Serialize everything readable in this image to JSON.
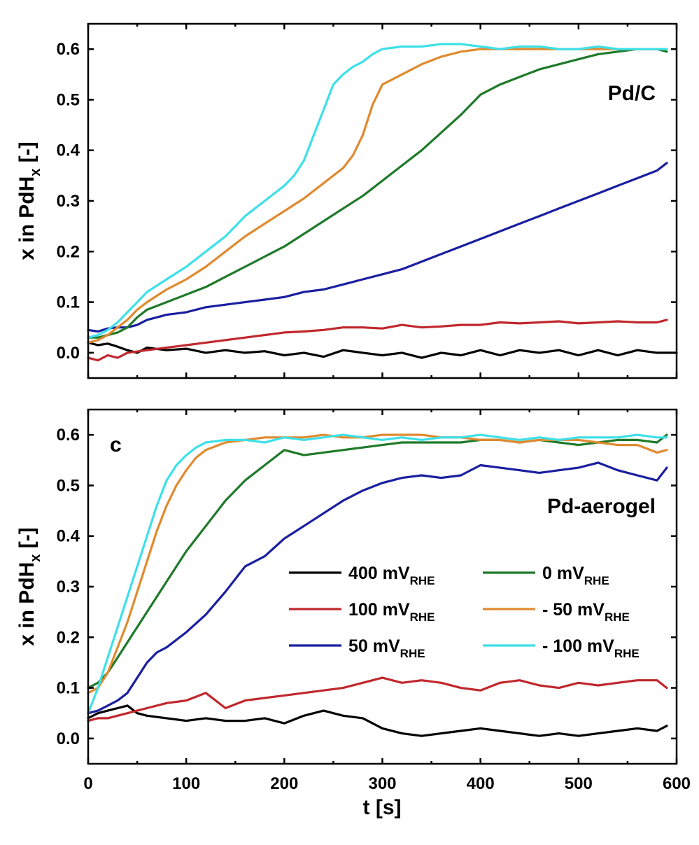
{
  "chart_data": [
    {
      "type": "line",
      "panel_label": "Pd/C",
      "xlabel": "",
      "ylabel": "x in PdH",
      "ylabel_subscript": "x",
      "ylabel_suffix": " [-]",
      "xlim": [
        0,
        600
      ],
      "ylim": [
        -0.05,
        0.65
      ],
      "yticks": [
        "0.0",
        "0.1",
        "0.2",
        "0.3",
        "0.4",
        "0.5",
        "0.6"
      ],
      "xticks": [],
      "series": [
        {
          "name": "400 mV_RHE",
          "color": "#000000",
          "x": [
            0,
            10,
            20,
            30,
            40,
            50,
            60,
            80,
            100,
            120,
            140,
            160,
            180,
            200,
            220,
            240,
            260,
            280,
            300,
            320,
            340,
            360,
            380,
            400,
            420,
            440,
            460,
            480,
            500,
            520,
            540,
            560,
            580,
            600
          ],
          "y": [
            0.02,
            0.015,
            0.018,
            0.012,
            0.005,
            0.0,
            0.01,
            0.005,
            0.008,
            0.0,
            0.005,
            0.0,
            0.003,
            -0.005,
            0.0,
            -0.008,
            0.005,
            0.0,
            -0.005,
            0.0,
            -0.01,
            0.0,
            -0.005,
            0.005,
            -0.005,
            0.005,
            0.0,
            0.005,
            -0.005,
            0.005,
            -0.005,
            0.005,
            0.0,
            0.0
          ]
        },
        {
          "name": "100 mV_RHE",
          "color": "#c0282d",
          "x": [
            0,
            10,
            20,
            30,
            40,
            60,
            80,
            100,
            120,
            140,
            160,
            180,
            200,
            220,
            240,
            260,
            280,
            300,
            320,
            340,
            360,
            380,
            400,
            420,
            440,
            460,
            480,
            500,
            520,
            540,
            560,
            580,
            590
          ],
          "y": [
            -0.01,
            -0.015,
            -0.005,
            -0.01,
            0.0,
            0.005,
            0.01,
            0.015,
            0.02,
            0.025,
            0.03,
            0.035,
            0.04,
            0.042,
            0.045,
            0.05,
            0.05,
            0.048,
            0.055,
            0.05,
            0.052,
            0.055,
            0.055,
            0.06,
            0.058,
            0.06,
            0.062,
            0.058,
            0.06,
            0.062,
            0.06,
            0.06,
            0.065
          ]
        },
        {
          "name": "50 mV_RHE",
          "color": "#1a1fa0",
          "x": [
            0,
            10,
            20,
            30,
            40,
            50,
            60,
            70,
            80,
            100,
            120,
            140,
            160,
            180,
            200,
            220,
            240,
            260,
            280,
            300,
            320,
            340,
            360,
            380,
            400,
            420,
            440,
            460,
            480,
            500,
            520,
            540,
            560,
            580,
            590
          ],
          "y": [
            0.045,
            0.042,
            0.048,
            0.05,
            0.05,
            0.055,
            0.065,
            0.07,
            0.075,
            0.08,
            0.09,
            0.095,
            0.1,
            0.105,
            0.11,
            0.12,
            0.125,
            0.135,
            0.145,
            0.155,
            0.165,
            0.18,
            0.195,
            0.21,
            0.225,
            0.24,
            0.255,
            0.27,
            0.285,
            0.3,
            0.315,
            0.33,
            0.345,
            0.36,
            0.375
          ]
        },
        {
          "name": "0 mV_RHE",
          "color": "#1f7a2a",
          "x": [
            0,
            10,
            20,
            30,
            40,
            50,
            60,
            80,
            100,
            120,
            140,
            160,
            180,
            200,
            220,
            240,
            260,
            280,
            300,
            320,
            340,
            360,
            380,
            400,
            420,
            440,
            460,
            480,
            500,
            520,
            540,
            560,
            580,
            590
          ],
          "y": [
            0.03,
            0.03,
            0.035,
            0.04,
            0.05,
            0.07,
            0.085,
            0.1,
            0.115,
            0.13,
            0.15,
            0.17,
            0.19,
            0.21,
            0.235,
            0.26,
            0.285,
            0.31,
            0.34,
            0.37,
            0.4,
            0.435,
            0.47,
            0.51,
            0.53,
            0.545,
            0.56,
            0.57,
            0.58,
            0.59,
            0.595,
            0.6,
            0.6,
            0.595
          ]
        },
        {
          "name": "- 50 mV_RHE",
          "color": "#e08a30",
          "x": [
            0,
            10,
            20,
            30,
            40,
            50,
            60,
            80,
            100,
            120,
            140,
            160,
            180,
            200,
            220,
            240,
            260,
            270,
            280,
            290,
            300,
            320,
            340,
            360,
            380,
            400,
            420,
            440,
            460,
            480,
            500,
            520,
            540,
            560,
            580,
            590
          ],
          "y": [
            0.02,
            0.025,
            0.035,
            0.05,
            0.065,
            0.085,
            0.1,
            0.125,
            0.145,
            0.17,
            0.2,
            0.23,
            0.255,
            0.28,
            0.305,
            0.335,
            0.365,
            0.39,
            0.43,
            0.49,
            0.53,
            0.55,
            0.57,
            0.585,
            0.595,
            0.6,
            0.6,
            0.6,
            0.6,
            0.6,
            0.6,
            0.6,
            0.6,
            0.6,
            0.6,
            0.6
          ]
        },
        {
          "name": "- 100 mV_RHE",
          "color": "#3ee0e8",
          "x": [
            0,
            10,
            20,
            30,
            40,
            50,
            60,
            80,
            100,
            120,
            140,
            160,
            180,
            200,
            210,
            220,
            230,
            240,
            250,
            260,
            270,
            280,
            290,
            300,
            320,
            340,
            360,
            380,
            400,
            420,
            440,
            460,
            480,
            500,
            520,
            540,
            560,
            580,
            590
          ],
          "y": [
            0.03,
            0.035,
            0.045,
            0.06,
            0.08,
            0.1,
            0.12,
            0.145,
            0.17,
            0.2,
            0.23,
            0.27,
            0.3,
            0.33,
            0.35,
            0.38,
            0.43,
            0.48,
            0.53,
            0.55,
            0.565,
            0.575,
            0.59,
            0.6,
            0.605,
            0.605,
            0.61,
            0.61,
            0.605,
            0.6,
            0.605,
            0.605,
            0.6,
            0.6,
            0.605,
            0.6,
            0.6,
            0.6,
            0.6
          ]
        }
      ]
    },
    {
      "type": "line",
      "panel_label": "Pd-aerogel",
      "corner_label": "c",
      "xlabel": "t [s]",
      "ylabel": "x in PdH",
      "ylabel_subscript": "x",
      "ylabel_suffix": " [-]",
      "xlim": [
        0,
        600
      ],
      "ylim": [
        -0.05,
        0.65
      ],
      "yticks": [
        "0.0",
        "0.1",
        "0.2",
        "0.3",
        "0.4",
        "0.5",
        "0.6"
      ],
      "xticks": [
        "0",
        "100",
        "200",
        "300",
        "400",
        "500",
        "600"
      ],
      "legend": {
        "placement": "lower-right",
        "main_unit": "mV",
        "subscript": "RHE",
        "columns": [
          [
            {
              "value": "400",
              "color": "#000000"
            },
            {
              "value": "100",
              "color": "#c0282d"
            },
            {
              "value": "50",
              "color": "#1a1fa0"
            }
          ],
          [
            {
              "value": "0",
              "color": "#1f7a2a"
            },
            {
              "value": "- 50",
              "color": "#e08a30"
            },
            {
              "value": "- 100",
              "color": "#3ee0e8"
            }
          ]
        ]
      },
      "series": [
        {
          "name": "400 mV_RHE",
          "color": "#000000",
          "x": [
            0,
            10,
            20,
            30,
            40,
            50,
            60,
            80,
            100,
            120,
            140,
            160,
            180,
            200,
            220,
            240,
            260,
            280,
            300,
            320,
            340,
            360,
            380,
            400,
            420,
            440,
            460,
            480,
            500,
            520,
            540,
            560,
            580,
            590
          ],
          "y": [
            0.04,
            0.05,
            0.055,
            0.06,
            0.065,
            0.05,
            0.045,
            0.04,
            0.035,
            0.04,
            0.035,
            0.035,
            0.04,
            0.03,
            0.045,
            0.055,
            0.045,
            0.04,
            0.02,
            0.01,
            0.005,
            0.01,
            0.015,
            0.02,
            0.015,
            0.01,
            0.005,
            0.01,
            0.005,
            0.01,
            0.015,
            0.02,
            0.015,
            0.025
          ]
        },
        {
          "name": "100 mV_RHE",
          "color": "#c0282d",
          "x": [
            0,
            10,
            20,
            30,
            40,
            50,
            60,
            80,
            100,
            120,
            140,
            160,
            180,
            200,
            220,
            240,
            260,
            280,
            300,
            320,
            340,
            360,
            380,
            400,
            420,
            440,
            460,
            480,
            500,
            520,
            540,
            560,
            580,
            590
          ],
          "y": [
            0.035,
            0.04,
            0.04,
            0.045,
            0.05,
            0.055,
            0.06,
            0.07,
            0.075,
            0.09,
            0.06,
            0.075,
            0.08,
            0.085,
            0.09,
            0.095,
            0.1,
            0.11,
            0.12,
            0.11,
            0.115,
            0.11,
            0.1,
            0.095,
            0.11,
            0.115,
            0.105,
            0.1,
            0.11,
            0.105,
            0.11,
            0.115,
            0.115,
            0.1
          ]
        },
        {
          "name": "50 mV_RHE",
          "color": "#1a1fa0",
          "x": [
            0,
            10,
            20,
            30,
            40,
            50,
            60,
            70,
            80,
            100,
            120,
            140,
            160,
            180,
            200,
            220,
            240,
            260,
            280,
            300,
            320,
            340,
            360,
            380,
            400,
            420,
            440,
            460,
            480,
            500,
            520,
            540,
            560,
            580,
            590
          ],
          "y": [
            0.05,
            0.055,
            0.065,
            0.075,
            0.09,
            0.12,
            0.15,
            0.17,
            0.18,
            0.21,
            0.245,
            0.29,
            0.34,
            0.36,
            0.395,
            0.42,
            0.445,
            0.47,
            0.49,
            0.505,
            0.515,
            0.52,
            0.515,
            0.52,
            0.54,
            0.535,
            0.53,
            0.525,
            0.53,
            0.535,
            0.545,
            0.53,
            0.52,
            0.51,
            0.535
          ]
        },
        {
          "name": "0 mV_RHE",
          "color": "#1f7a2a",
          "x": [
            0,
            10,
            20,
            30,
            40,
            50,
            60,
            80,
            100,
            120,
            140,
            160,
            180,
            200,
            220,
            240,
            260,
            280,
            300,
            320,
            340,
            360,
            380,
            400,
            420,
            440,
            460,
            480,
            500,
            520,
            540,
            560,
            580,
            590
          ],
          "y": [
            0.1,
            0.11,
            0.13,
            0.16,
            0.19,
            0.22,
            0.25,
            0.31,
            0.37,
            0.42,
            0.47,
            0.51,
            0.54,
            0.57,
            0.56,
            0.565,
            0.57,
            0.575,
            0.58,
            0.585,
            0.585,
            0.585,
            0.585,
            0.59,
            0.59,
            0.585,
            0.59,
            0.585,
            0.58,
            0.585,
            0.59,
            0.59,
            0.585,
            0.6
          ]
        },
        {
          "name": "- 50 mV_RHE",
          "color": "#e08a30",
          "x": [
            0,
            10,
            20,
            30,
            40,
            50,
            60,
            70,
            80,
            90,
            100,
            110,
            120,
            140,
            160,
            180,
            200,
            220,
            240,
            260,
            280,
            300,
            320,
            340,
            360,
            380,
            400,
            420,
            440,
            460,
            480,
            500,
            520,
            540,
            560,
            580,
            590
          ],
          "y": [
            0.09,
            0.1,
            0.13,
            0.18,
            0.23,
            0.29,
            0.35,
            0.41,
            0.46,
            0.5,
            0.53,
            0.555,
            0.57,
            0.585,
            0.59,
            0.595,
            0.595,
            0.595,
            0.6,
            0.595,
            0.595,
            0.6,
            0.6,
            0.6,
            0.595,
            0.595,
            0.59,
            0.59,
            0.585,
            0.59,
            0.59,
            0.59,
            0.585,
            0.58,
            0.58,
            0.565,
            0.57
          ]
        },
        {
          "name": "- 100 mV_RHE",
          "color": "#3ee0e8",
          "x": [
            0,
            10,
            20,
            30,
            40,
            50,
            60,
            70,
            80,
            90,
            100,
            110,
            120,
            140,
            160,
            180,
            200,
            220,
            240,
            260,
            280,
            300,
            320,
            340,
            360,
            380,
            400,
            420,
            440,
            460,
            480,
            500,
            520,
            540,
            560,
            580,
            590
          ],
          "y": [
            0.05,
            0.1,
            0.16,
            0.22,
            0.28,
            0.34,
            0.4,
            0.46,
            0.51,
            0.54,
            0.56,
            0.575,
            0.585,
            0.59,
            0.59,
            0.585,
            0.595,
            0.59,
            0.595,
            0.6,
            0.595,
            0.59,
            0.595,
            0.59,
            0.595,
            0.595,
            0.6,
            0.595,
            0.59,
            0.595,
            0.59,
            0.595,
            0.595,
            0.595,
            0.6,
            0.595,
            0.595
          ]
        }
      ]
    }
  ]
}
